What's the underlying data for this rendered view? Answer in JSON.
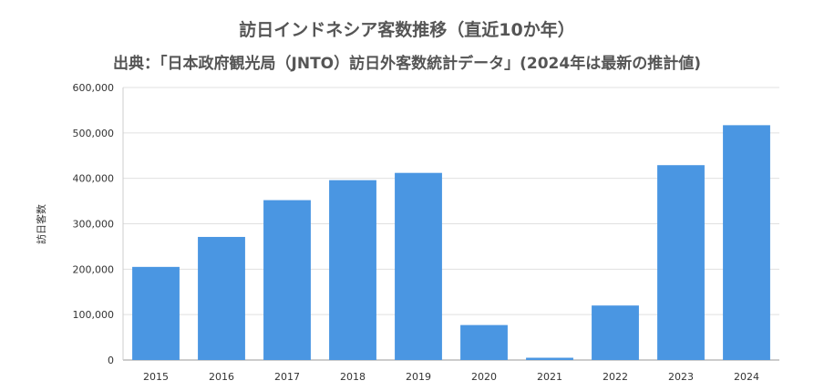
{
  "chart_data": {
    "type": "bar",
    "title": "訪日インドネシア客数推移（直近10か年）",
    "subtitle": "出典：「日本政府観光局（JNTO）訪日外客数統計データ」(2024年は最新の推計値)",
    "ylabel": "訪日客数",
    "xlabel": "",
    "categories": [
      "2015",
      "2016",
      "2017",
      "2018",
      "2019",
      "2020",
      "2021",
      "2022",
      "2023",
      "2024"
    ],
    "values": [
      205000,
      271000,
      352000,
      396000,
      412000,
      77000,
      5000,
      120000,
      429000,
      517000
    ],
    "ylim": [
      0,
      600000
    ],
    "yticks": [
      "0",
      "100,000",
      "200,000",
      "300,000",
      "400,000",
      "500,000",
      "600,000"
    ],
    "ytick_values": [
      0,
      100000,
      200000,
      300000,
      400000,
      500000,
      600000
    ],
    "bar_color": "#4A96E2",
    "grid": true,
    "legend": "none"
  }
}
